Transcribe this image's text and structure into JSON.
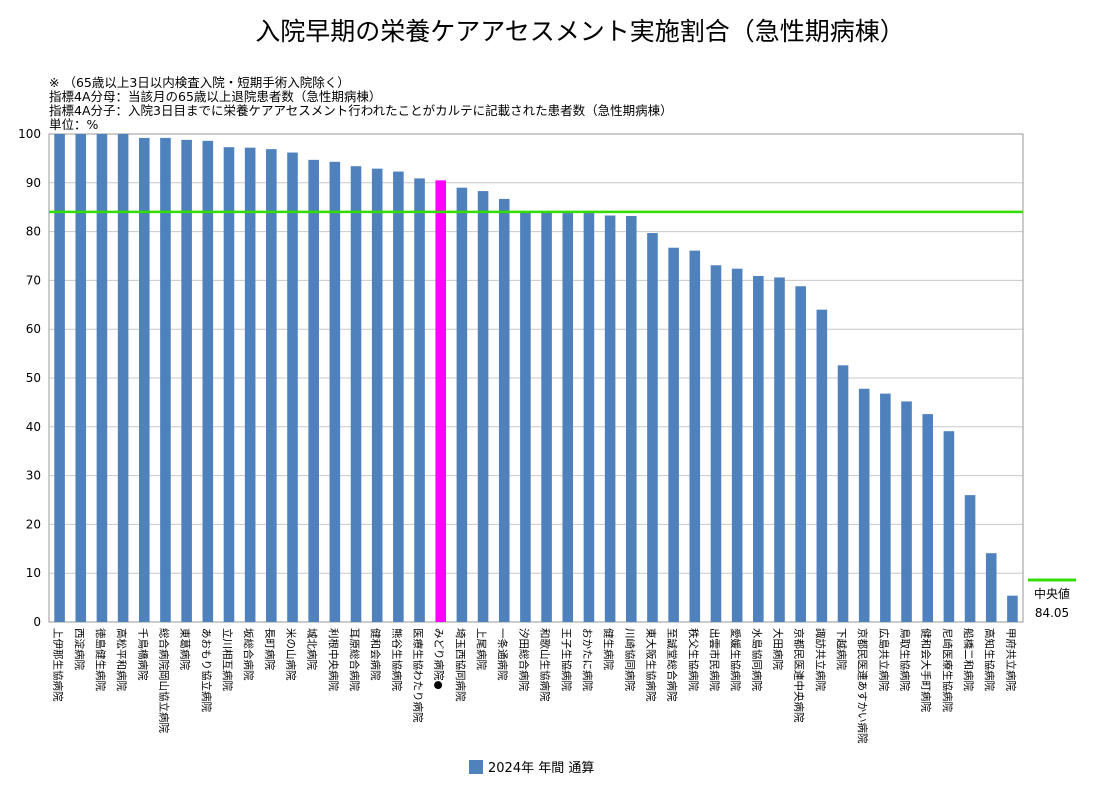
{
  "chart_data": {
    "type": "bar",
    "title": "入院早期の栄養ケアアセスメント実施割合（急性期病棟）",
    "notes": [
      "※ （65歳以上3日以内検査入院・短期手術入院除く）",
      "指標4A分母：当該月の65歳以上退院患者数（急性期病棟）",
      "指標4A分子：入院3日目までに栄養ケアアセスメント行われたことがカルテに記載された患者数（急性期病棟）",
      "単位：%"
    ],
    "ylim": [
      0,
      100
    ],
    "yticks": [
      0,
      10,
      20,
      30,
      40,
      50,
      60,
      70,
      80,
      90,
      100
    ],
    "grid": true,
    "legend_position": "bottom",
    "categories": [
      "上伊那生協病院",
      "西淀病院",
      "徳島健生病院",
      "高松平和病院",
      "千鳥橋病院",
      "総合病院岡山協立病院",
      "東葛病院",
      "あおもり協立病院",
      "立川相互病院",
      "坂総合病院",
      "長町病院",
      "米の山病院",
      "城北病院",
      "利根中央病院",
      "耳原総合病院",
      "健和会病院",
      "熊谷生協病院",
      "医療生協わたり病院",
      "みどり病院●",
      "埼玉西協同病院",
      "上尾病院",
      "一条通病院",
      "汐田総合病院",
      "和歌山生協病院",
      "王子生協病院",
      "おかたに病院",
      "健生病院",
      "川崎協同病院",
      "東大阪生協病院",
      "至誠堂総合病院",
      "秩父生協病院",
      "出雲市民病院",
      "愛媛生協病院",
      "水島協同病院",
      "大田病院",
      "京都民医連中央病院",
      "諏訪共立病院",
      "下越病院",
      "京都民医連あすかい病院",
      "広島共立病院",
      "鳥取生協病院",
      "健和会大手町病院",
      "尼崎医療生協病院",
      "船橋二和病院",
      "高知生協病院",
      "甲府共立病院"
    ],
    "series": [
      {
        "name": "2024年 年間 通算",
        "color": "#4f81bd",
        "values": [
          100,
          100,
          100,
          100,
          99.2,
          99.2,
          98.8,
          98.6,
          97.3,
          97.2,
          96.9,
          96.2,
          94.7,
          94.3,
          93.4,
          92.9,
          92.3,
          90.9,
          90.5,
          89,
          88.3,
          86.7,
          83.9,
          83.9,
          83.8,
          83.8,
          83.3,
          83.2,
          79.7,
          76.7,
          76.1,
          73.1,
          72.4,
          70.9,
          70.6,
          68.8,
          64,
          52.6,
          47.8,
          46.8,
          45.2,
          42.6,
          39.1,
          26,
          14.1,
          5.4
        ]
      }
    ],
    "highlight": {
      "category": "みどり病院●",
      "color": "#ff00ff"
    },
    "median": {
      "label": "中央値",
      "value": 84.05,
      "color": "#33dd00"
    }
  }
}
